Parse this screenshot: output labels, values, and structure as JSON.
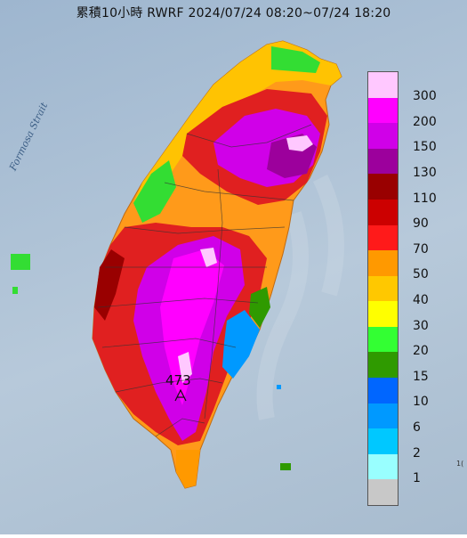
{
  "title": "累積10小時 RWRF 2024/07/24 08:20~07/24 18:20",
  "map_labels": {
    "strait": "Formosa Strait",
    "max_value": "473"
  },
  "legend": {
    "thresholds": [
      "300",
      "200",
      "150",
      "130",
      "110",
      "90",
      "70",
      "50",
      "40",
      "30",
      "20",
      "15",
      "10",
      "6",
      "2",
      "1"
    ],
    "colors": [
      "#ffc8ff",
      "#ff00ff",
      "#d000e8",
      "#9c009c",
      "#990000",
      "#cc0000",
      "#ff1a1a",
      "#ff9900",
      "#ffc800",
      "#ffff00",
      "#33ff33",
      "#2f9a00",
      "#0066ff",
      "#0099ff",
      "#00c8ff",
      "#99ffff",
      "#c8c8c8"
    ]
  },
  "corner_text": "1("
}
